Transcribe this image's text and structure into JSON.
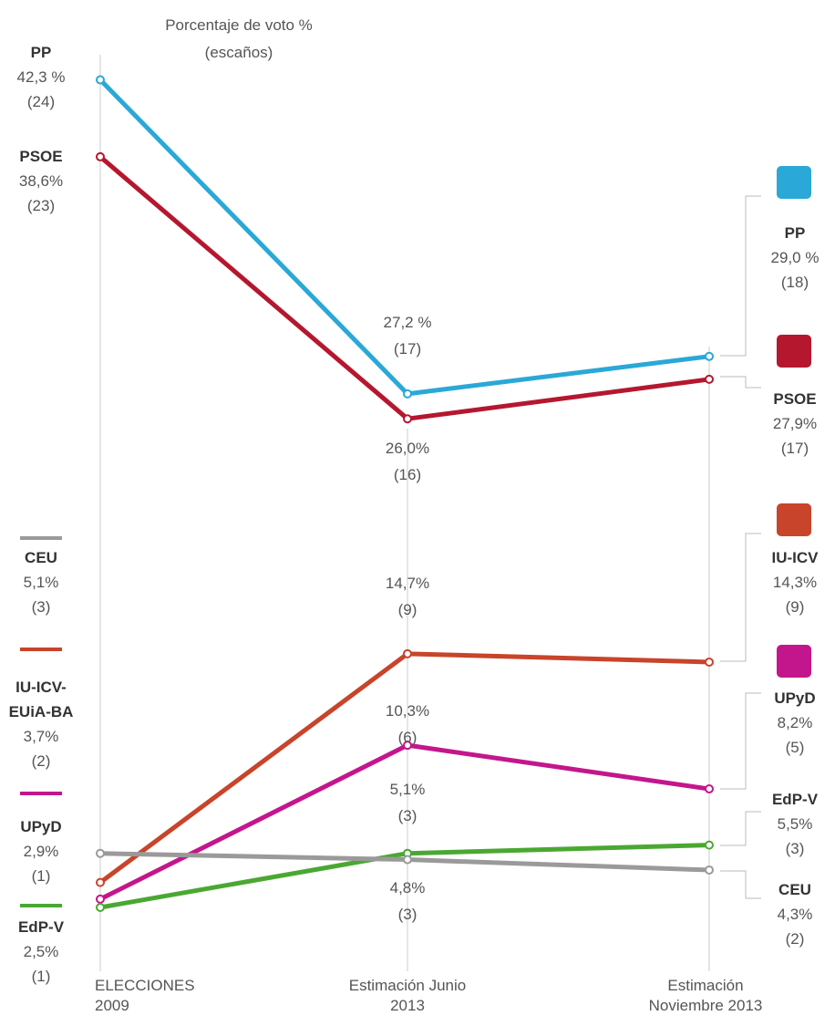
{
  "chart_data": {
    "type": "line",
    "title": "Porcentaje de voto %",
    "subtitle": "(escaños)",
    "categories": [
      "ELECCIONES 2009",
      "Estimación Junio 2013",
      "Estimación Noviembre 2013"
    ],
    "series": [
      {
        "name": "PP",
        "color": "#2aa8d8",
        "values": [
          42.3,
          27.2,
          29.0
        ],
        "value_labels": [
          "42,3 %",
          "27,2 %",
          "29,0 %"
        ],
        "seat_labels": [
          "(24)",
          "(17)",
          "(18)"
        ]
      },
      {
        "name": "PSOE",
        "color": "#b5172f",
        "values": [
          38.6,
          26.0,
          27.9
        ],
        "value_labels": [
          "38,6%",
          "26,0%",
          "27,9%"
        ],
        "seat_labels": [
          "(23)",
          "(16)",
          "(17)"
        ]
      },
      {
        "name": "IU-ICV",
        "left_name": "IU-ICV-EUiA-BA",
        "color": "#c8442a",
        "values": [
          3.7,
          14.7,
          14.3
        ],
        "value_labels": [
          "3,7%",
          "14,7%",
          "14,3%"
        ],
        "seat_labels": [
          "(2)",
          "(9)",
          "(9)"
        ]
      },
      {
        "name": "UPyD",
        "color": "#c4168c",
        "values": [
          2.9,
          10.3,
          8.2
        ],
        "value_labels": [
          "2,9%",
          "10,3%",
          "8,2%"
        ],
        "seat_labels": [
          "(1)",
          "(6)",
          "(5)"
        ]
      },
      {
        "name": "EdP-V",
        "color": "#4aa832",
        "values": [
          2.5,
          5.1,
          5.5
        ],
        "value_labels": [
          "2,5%",
          "5,1%",
          "5,5%"
        ],
        "seat_labels": [
          "(1)",
          "(3)",
          "(3)"
        ]
      },
      {
        "name": "CEU",
        "color": "#9a9a9a",
        "values": [
          5.1,
          4.8,
          4.3
        ],
        "value_labels": [
          "5,1%",
          "4,8%",
          "4,3%"
        ],
        "seat_labels": [
          "(3)",
          "(3)",
          "(2)"
        ]
      }
    ]
  }
}
